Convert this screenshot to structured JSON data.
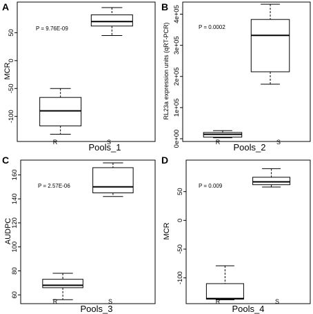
{
  "chart_data": [
    {
      "panel": "A",
      "type": "boxplot",
      "ylabel": "MCR",
      "xlabel": "Pools_1",
      "p_value": "P = 9.76E-09",
      "ylim": [
        -140,
        100
      ],
      "yticks": [
        -100,
        -50,
        0,
        50
      ],
      "ytick_labels": [
        "-100",
        "-50",
        "0",
        "50"
      ],
      "categories": [
        "R",
        "S"
      ],
      "boxes": [
        {
          "category": "R",
          "min": -132,
          "q1": -117,
          "median": -90,
          "q3": -66,
          "max": -50
        },
        {
          "category": "S",
          "min": 45,
          "q1": 62,
          "median": 70,
          "q3": 82,
          "max": 95
        }
      ]
    },
    {
      "panel": "B",
      "type": "boxplot",
      "ylabel": "RL23a expression units (qRT-PCR)",
      "xlabel": "Pools_2",
      "p_value": "P = 0.0002",
      "ylim": [
        0,
        430000
      ],
      "yticks": [
        0,
        100000,
        200000,
        300000,
        400000
      ],
      "ytick_labels": [
        "0e+00",
        "1e+05",
        "2e+05",
        "3e+05",
        "4e+05"
      ],
      "categories": [
        "R",
        "S"
      ],
      "boxes": [
        {
          "category": "R",
          "min": 3000,
          "q1": 5000,
          "median": 14000,
          "q3": 20000,
          "max": 26000
        },
        {
          "category": "S",
          "min": 175000,
          "q1": 215000,
          "median": 332000,
          "q3": 383000,
          "max": 432000
        }
      ]
    },
    {
      "panel": "C",
      "type": "boxplot",
      "ylabel": "AUDPC",
      "xlabel": "Pools_3",
      "p_value": "P = 2.57E-06",
      "ylim": [
        55,
        170
      ],
      "yticks": [
        60,
        80,
        100,
        120,
        140,
        160
      ],
      "ytick_labels": [
        "60",
        "80",
        "100",
        "120",
        "140",
        "160"
      ],
      "categories": [
        "R",
        "S"
      ],
      "boxes": [
        {
          "category": "R",
          "min": 56,
          "q1": 66,
          "median": 68,
          "q3": 73,
          "max": 78
        },
        {
          "category": "S",
          "min": 142,
          "q1": 145,
          "median": 150,
          "q3": 166,
          "max": 170
        }
      ]
    },
    {
      "panel": "D",
      "type": "boxplot",
      "ylabel": "MCR",
      "xlabel": "Pools_4",
      "p_value": "P = 0.009",
      "ylim": [
        -140,
        100
      ],
      "yticks": [
        -100,
        -50,
        0,
        50
      ],
      "ytick_labels": [
        "-100",
        "-50",
        "0",
        "50"
      ],
      "categories": [
        "R",
        "S"
      ],
      "boxes": [
        {
          "category": "R",
          "min": -138,
          "q1": -137,
          "median": -136,
          "q3": -110,
          "max": -79
        },
        {
          "category": "S",
          "min": 58,
          "q1": 62,
          "median": 67,
          "q3": 75,
          "max": 90
        }
      ]
    }
  ]
}
